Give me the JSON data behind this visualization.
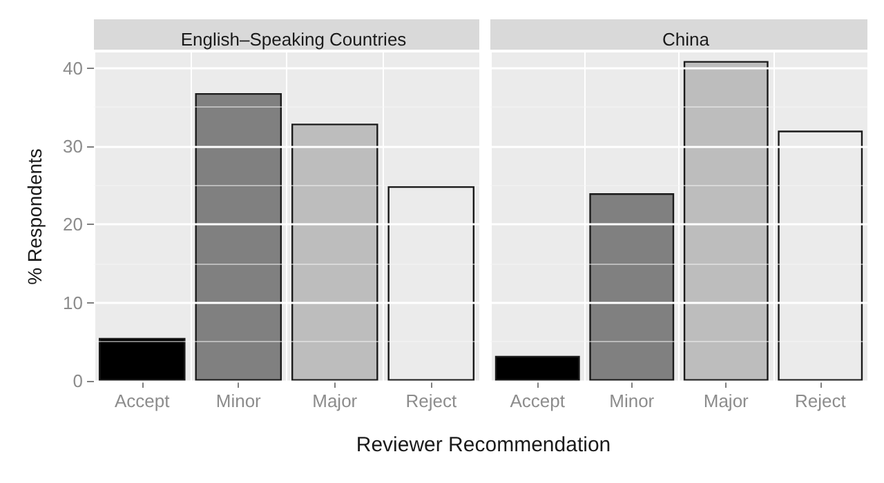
{
  "chart_data": [
    {
      "type": "bar",
      "title": "English–Speaking Countries",
      "ylabel": "% Respondents",
      "xlabel": "Reviewer Recommendation",
      "categories": [
        "Accept",
        "Minor",
        "Major",
        "Reject"
      ],
      "values": [
        5.5,
        36.8,
        32.9,
        24.9
      ],
      "colors": [
        "#000000",
        "#808080",
        "#bdbdbd",
        "#ebebeb"
      ],
      "ylim": [
        0,
        42
      ],
      "yticks": [
        0,
        10,
        20,
        30,
        40
      ],
      "grid": true
    },
    {
      "type": "bar",
      "title": "China",
      "categories": [
        "Accept",
        "Minor",
        "Major",
        "Reject"
      ],
      "values": [
        3.2,
        24,
        40.9,
        32
      ],
      "colors": [
        "#000000",
        "#808080",
        "#bdbdbd",
        "#ebebeb"
      ],
      "ylim": [
        0,
        42
      ],
      "yticks": [
        0,
        10,
        20,
        30,
        40
      ],
      "grid": true,
      "tick_labels": "x"
    }
  ]
}
